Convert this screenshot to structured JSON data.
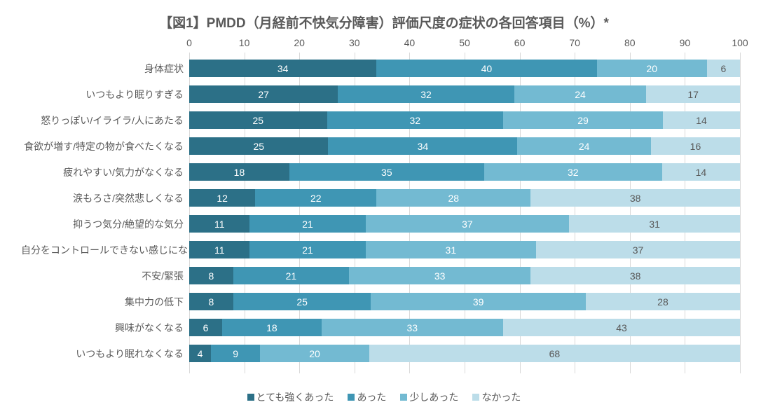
{
  "title": "【図1】PMDD（月経前不快気分障害）評価尺度の症状の各回答項目（%）*",
  "title_fontsize": 19,
  "title_color": "#595959",
  "background_color": "#ffffff",
  "xaxis": {
    "min": 0,
    "max": 100,
    "ticks": [
      0,
      10,
      20,
      30,
      40,
      50,
      60,
      70,
      80,
      90,
      100
    ],
    "tick_color": "#595959",
    "tick_fontsize": 14,
    "gridline_color": "#d9d9d9"
  },
  "series_colors": [
    "#2c7087",
    "#3f96b4",
    "#73bad2",
    "#bcdde9"
  ],
  "series_labels": [
    "とても強くあった",
    "あった",
    "少しあった",
    "なかった"
  ],
  "label_text_color": "#ffffff",
  "value_label_none_color": "#595959",
  "category_label_color": "#595959",
  "category_label_fontsize": 14,
  "legend_fontsize": 14,
  "rows": [
    {
      "label": "身体症状",
      "values": [
        34,
        40,
        20,
        6
      ]
    },
    {
      "label": "いつもより眠りすぎる",
      "values": [
        27,
        32,
        24,
        17
      ]
    },
    {
      "label": "怒りっぽい/イライラ/人にあたる",
      "values": [
        25,
        32,
        29,
        14
      ]
    },
    {
      "label": "食欲が増す/特定の物が食べたくなる",
      "values": [
        25,
        34,
        24,
        16
      ]
    },
    {
      "label": "疲れやすい/気力がなくなる",
      "values": [
        18,
        35,
        32,
        14
      ]
    },
    {
      "label": "涙もろさ/突然悲しくなる",
      "values": [
        12,
        22,
        28,
        38
      ]
    },
    {
      "label": "抑うつ気分/絶望的な気分",
      "values": [
        11,
        21,
        37,
        31
      ]
    },
    {
      "label": "自分をコントロールできない感じになる",
      "values": [
        11,
        21,
        31,
        37
      ]
    },
    {
      "label": "不安/緊張",
      "values": [
        8,
        21,
        33,
        38
      ]
    },
    {
      "label": "集中力の低下",
      "values": [
        8,
        25,
        39,
        28
      ]
    },
    {
      "label": "興味がなくなる",
      "values": [
        6,
        18,
        33,
        43
      ]
    },
    {
      "label": "いつもより眠れなくなる",
      "values": [
        4,
        9,
        20,
        68
      ]
    }
  ]
}
